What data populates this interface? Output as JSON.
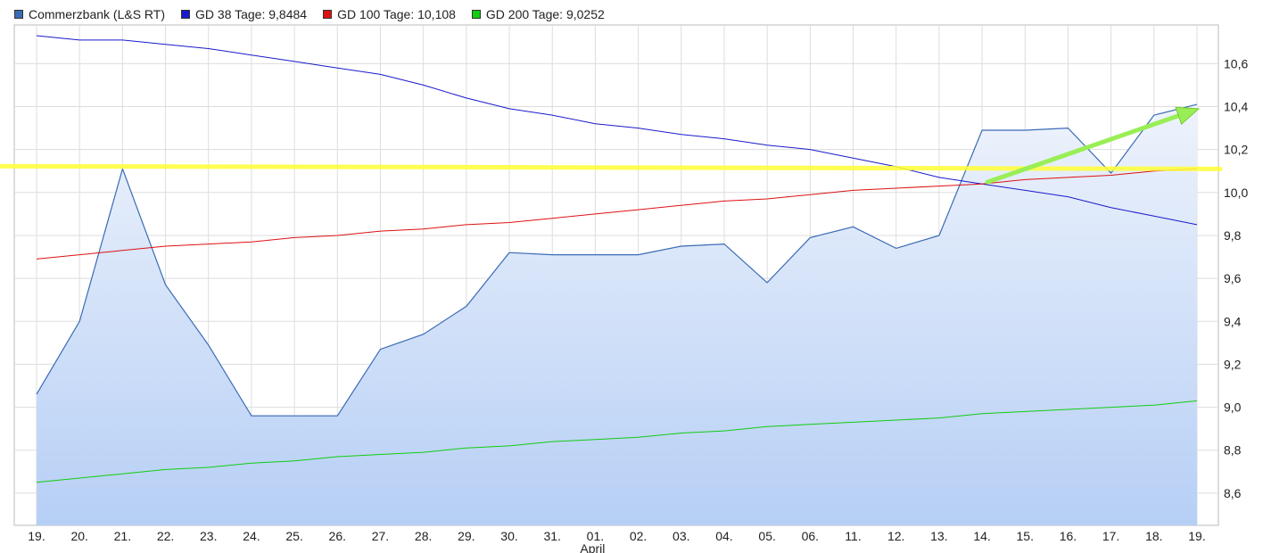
{
  "legend": [
    {
      "label": "Commerzbank (L&S RT)",
      "color": "#3a6bb5"
    },
    {
      "label": "GD 38 Tage: 9,8484",
      "color": "#1a1acc"
    },
    {
      "label": "GD 100 Tage: 10,108",
      "color": "#dd1111"
    },
    {
      "label": "GD 200 Tage: 9,0252",
      "color": "#11cc11"
    }
  ],
  "chart_data": {
    "type": "line",
    "categories": [
      "19.",
      "20.",
      "21.",
      "22.",
      "23.",
      "24.",
      "25.",
      "26.",
      "27.",
      "28.",
      "29.",
      "30.",
      "31.",
      "01.",
      "02.",
      "03.",
      "04.",
      "05.",
      "06.",
      "11.",
      "12.",
      "13.",
      "14.",
      "15.",
      "16.",
      "17.",
      "18.",
      "19."
    ],
    "month_label": "April",
    "month_label_at": "01.",
    "ylim": [
      8.45,
      10.78
    ],
    "yticks": [
      "8,6",
      "8,8",
      "9,0",
      "9,2",
      "9,4",
      "9,6",
      "9,8",
      "10,0",
      "10,2",
      "10,4",
      "10,6"
    ],
    "ytick_values": [
      8.6,
      8.8,
      9.0,
      9.2,
      9.4,
      9.6,
      9.8,
      10.0,
      10.2,
      10.4,
      10.6
    ],
    "grid": true,
    "legend_position": "top-left",
    "series": [
      {
        "name": "Commerzbank (L&S RT)",
        "style": "area",
        "color": "#3a6bb5",
        "values": [
          9.06,
          9.4,
          10.11,
          9.57,
          9.29,
          8.96,
          8.96,
          8.96,
          9.27,
          9.34,
          9.47,
          9.72,
          9.71,
          9.71,
          9.71,
          9.75,
          9.76,
          9.58,
          9.79,
          9.84,
          9.74,
          9.8,
          10.29,
          10.29,
          10.3,
          10.09,
          10.36,
          10.41
        ]
      },
      {
        "name": "GD 38 Tage: 9,8484",
        "style": "line",
        "color": "#1a1acc",
        "values": [
          10.73,
          10.71,
          10.71,
          10.69,
          10.67,
          10.64,
          10.61,
          10.58,
          10.55,
          10.5,
          10.44,
          10.39,
          10.36,
          10.32,
          10.3,
          10.27,
          10.25,
          10.22,
          10.2,
          10.16,
          10.12,
          10.07,
          10.04,
          10.01,
          9.98,
          9.93,
          9.89,
          9.85
        ]
      },
      {
        "name": "GD 100 Tage: 10,108",
        "style": "line",
        "color": "#dd1111",
        "values": [
          9.69,
          9.71,
          9.73,
          9.75,
          9.76,
          9.77,
          9.79,
          9.8,
          9.82,
          9.83,
          9.85,
          9.86,
          9.88,
          9.9,
          9.92,
          9.94,
          9.96,
          9.97,
          9.99,
          10.01,
          10.02,
          10.03,
          10.04,
          10.06,
          10.07,
          10.08,
          10.1,
          10.11
        ]
      },
      {
        "name": "GD 200 Tage: 9,0252",
        "style": "line",
        "color": "#11cc11",
        "values": [
          8.65,
          8.67,
          8.69,
          8.71,
          8.72,
          8.74,
          8.75,
          8.77,
          8.78,
          8.79,
          8.81,
          8.82,
          8.84,
          8.85,
          8.86,
          8.88,
          8.89,
          8.91,
          8.92,
          8.93,
          8.94,
          8.95,
          8.97,
          8.98,
          8.99,
          9.0,
          9.01,
          9.03
        ]
      }
    ],
    "annotations": [
      {
        "kind": "horizontal-line",
        "color": "#ffff33",
        "y": 10.11
      },
      {
        "kind": "arrow",
        "color": "#99ee55",
        "from": {
          "x": "14.",
          "y": 10.04
        },
        "to": {
          "x": "19.",
          "y": 10.39
        }
      }
    ]
  }
}
